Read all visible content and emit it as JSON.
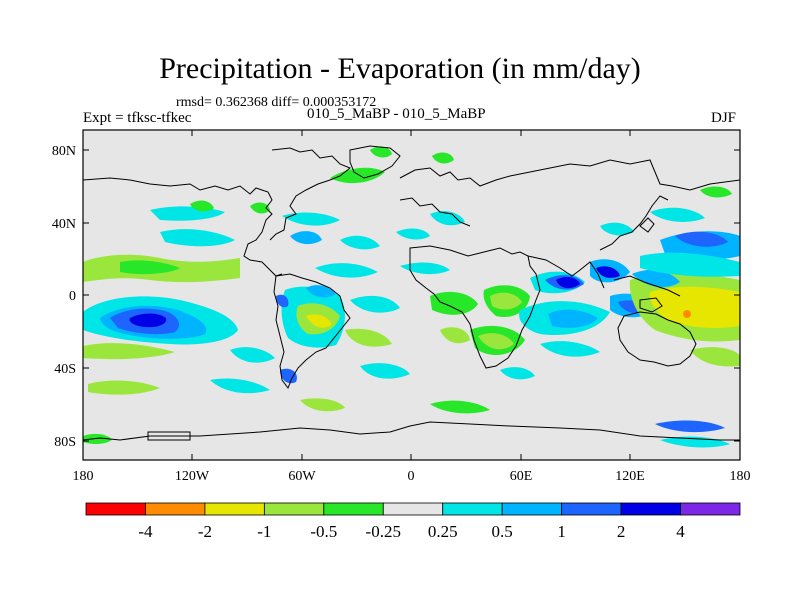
{
  "title": "Precipitation - Evaporation (in mm/day)",
  "stats": "rmsd= 0.362368 diff= 0.000353172",
  "experiment": "Expt = tfksc-tfkec",
  "case": "010_5_MaBP - 010_5_MaBP",
  "season": "DJF",
  "lat_ticks": [
    "80N",
    "40N",
    "0",
    "40S",
    "80S"
  ],
  "lon_ticks": [
    "180",
    "120W",
    "60W",
    "0",
    "60E",
    "120E",
    "180"
  ],
  "colorbar": {
    "colors": [
      "#ff0000",
      "#ff8c00",
      "#e6e600",
      "#9be63c",
      "#28e628",
      "#e6e6e6",
      "#00e6e6",
      "#00b4ff",
      "#1e64ff",
      "#0000e6",
      "#7d28e6"
    ],
    "labels": [
      "-4",
      "-2",
      "-1",
      "-0.5",
      "-0.25",
      "0.25",
      "0.5",
      "1",
      "2",
      "4"
    ]
  },
  "colors": {
    "background": "#e6e6e6",
    "coast": "#000000"
  }
}
